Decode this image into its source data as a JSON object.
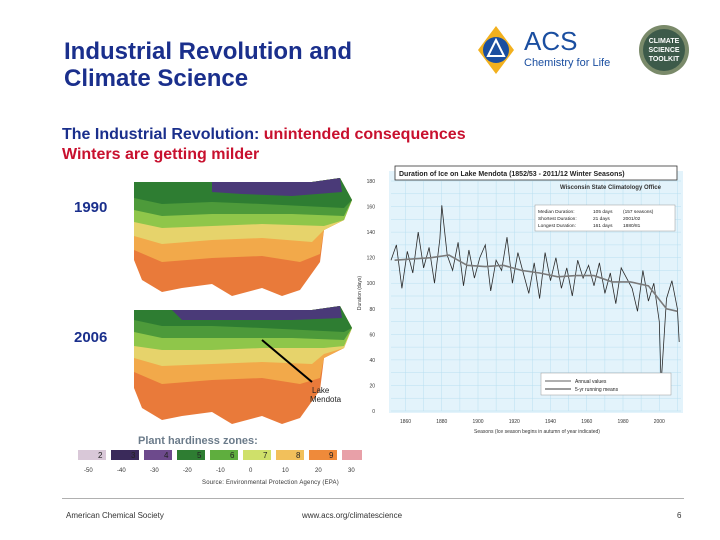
{
  "slide": {
    "title_line1": "Industrial Revolution and",
    "title_line2": "Climate Science",
    "subtitle_prefix": "The Industrial Revolution: ",
    "subtitle_highlight": "unintended consequences",
    "subtitle_line2": "Winters are getting milder",
    "source": "Source: Environmental Protection Agency (EPA)",
    "footer_left": "American Chemical Society",
    "footer_center": "www.acs.org/climatescience",
    "page_number": "6"
  },
  "logos": {
    "acs_text": "ACS",
    "acs_tagline": "Chemistry for Life",
    "toolkit_line1": "CLIMATE",
    "toolkit_line2": "SCIENCE",
    "toolkit_line3": "TOOLKIT"
  },
  "maps": {
    "label_1990": "1990",
    "label_2006": "2006",
    "lake_label_1": "Lake",
    "lake_label_2": "Mendota",
    "legend_title": "Plant hardiness zones:",
    "zones": [
      {
        "num": "2",
        "temp": "-50",
        "color": "#d9c8d8"
      },
      {
        "num": "3",
        "temp": "-40",
        "color": "#3a2a5a"
      },
      {
        "num": "4",
        "temp": "-30",
        "color": "#6d4a8c"
      },
      {
        "num": "5",
        "temp": "-20",
        "color": "#2e7d32"
      },
      {
        "num": "6",
        "temp": "-10",
        "color": "#5fae3e"
      },
      {
        "num": "7",
        "temp": "0",
        "color": "#cfe06a"
      },
      {
        "num": "8",
        "temp": "10",
        "color": "#f2c05b"
      },
      {
        "num": "9",
        "temp": "20",
        "color": "#ef8a3a"
      },
      {
        "num": "10",
        "temp": "30",
        "color": "#e8a0a8"
      }
    ],
    "colors": {
      "north": "#4a3a78",
      "zone4": "#2e7d32",
      "zone5": "#4d9a3a",
      "zone6": "#8fc64a",
      "zone7": "#e6d36b",
      "zone8": "#f2a94a",
      "zone9": "#e97a3a"
    }
  },
  "chart_data": {
    "type": "line",
    "title": "Duration of Ice on Lake Mendota (1852/53 - 2011/12 Winter Seasons)",
    "subtitle": "Wisconsin State Climatology Office",
    "xlabel": "Seasons (Ice season begins in autumn of year indicated)",
    "ylabel": "Duration (days)",
    "xlim": [
      1852,
      2012
    ],
    "ylim": [
      0,
      180
    ],
    "xticks": [
      1860,
      1880,
      1900,
      1920,
      1940,
      1960,
      1980,
      2000
    ],
    "yticks": [
      0,
      20,
      40,
      60,
      80,
      100,
      120,
      140,
      160,
      180
    ],
    "stats": [
      {
        "label": "Median Duration:",
        "value": "105 days",
        "note": "(157 seasons)"
      },
      {
        "label": "Shortest Duration:",
        "value": "21 days",
        "note": "2001/02"
      },
      {
        "label": "Longest Duration:",
        "value": "161 days",
        "note": "1880/81"
      }
    ],
    "legend": [
      "Annual values",
      "5-yr running means"
    ],
    "series": [
      {
        "name": "Annual values",
        "x": [
          1852,
          1855,
          1858,
          1861,
          1864,
          1867,
          1870,
          1873,
          1876,
          1879,
          1880,
          1883,
          1886,
          1889,
          1892,
          1895,
          1898,
          1901,
          1904,
          1907,
          1910,
          1913,
          1916,
          1919,
          1922,
          1925,
          1928,
          1931,
          1934,
          1937,
          1940,
          1943,
          1946,
          1949,
          1952,
          1955,
          1958,
          1961,
          1964,
          1967,
          1970,
          1973,
          1976,
          1979,
          1982,
          1985,
          1988,
          1991,
          1994,
          1997,
          2000,
          2001,
          2004,
          2007,
          2010,
          2011
        ],
        "y": [
          118,
          130,
          96,
          125,
          108,
          140,
          112,
          128,
          100,
          135,
          161,
          122,
          110,
          132,
          98,
          126,
          104,
          120,
          130,
          94,
          118,
          110,
          136,
          100,
          124,
          108,
          92,
          116,
          88,
          124,
          102,
          120,
          96,
          112,
          90,
          118,
          104,
          114,
          98,
          116,
          92,
          108,
          84,
          112,
          104,
          96,
          78,
          110,
          86,
          100,
          70,
          21,
          88,
          102,
          80,
          54
        ]
      },
      {
        "name": "5-yr running means",
        "x": [
          1854,
          1864,
          1874,
          1884,
          1894,
          1904,
          1914,
          1924,
          1934,
          1944,
          1954,
          1964,
          1974,
          1984,
          1994,
          2004,
          2010
        ],
        "y": [
          118,
          119,
          120,
          122,
          114,
          113,
          114,
          110,
          108,
          105,
          106,
          106,
          101,
          101,
          98,
          80,
          78
        ]
      }
    ]
  }
}
